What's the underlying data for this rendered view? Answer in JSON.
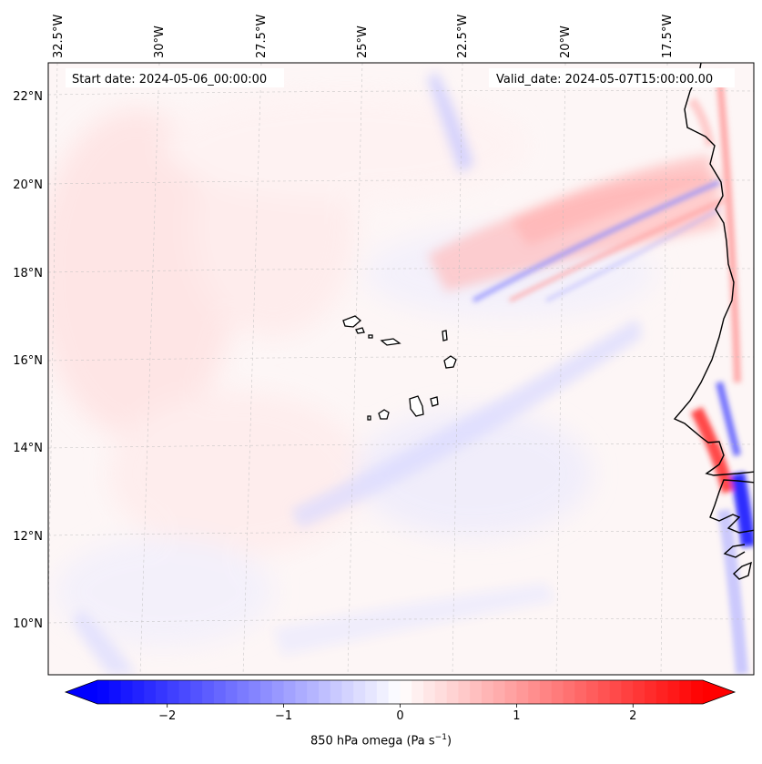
{
  "map": {
    "start_date": "Start date: 2024-05-06_00:00:00",
    "valid_date": "Valid_date: 2024-05-07T15:00:00.00",
    "lon_labels": [
      "32.5°W",
      "30°W",
      "27.5°W",
      "25°W",
      "22.5°W",
      "20°W",
      "17.5°W"
    ],
    "lat_labels": [
      "22°N",
      "20°N",
      "18°N",
      "16°N",
      "14°N",
      "12°N",
      "10°N"
    ]
  },
  "colorbar": {
    "label": "850 hPa omega (Pa s",
    "label_sup": "−1",
    "label_close": ")",
    "ticks": [
      {
        "text": "−2",
        "value": -2
      },
      {
        "text": "−1",
        "value": -1
      },
      {
        "text": "0",
        "value": 0
      },
      {
        "text": "1",
        "value": 1
      },
      {
        "text": "2",
        "value": 2
      }
    ],
    "range": [
      -2.6,
      2.6
    ],
    "colors": {
      "low": "#0000ff",
      "mid": "#ffffff",
      "high": "#ff0000"
    }
  }
}
